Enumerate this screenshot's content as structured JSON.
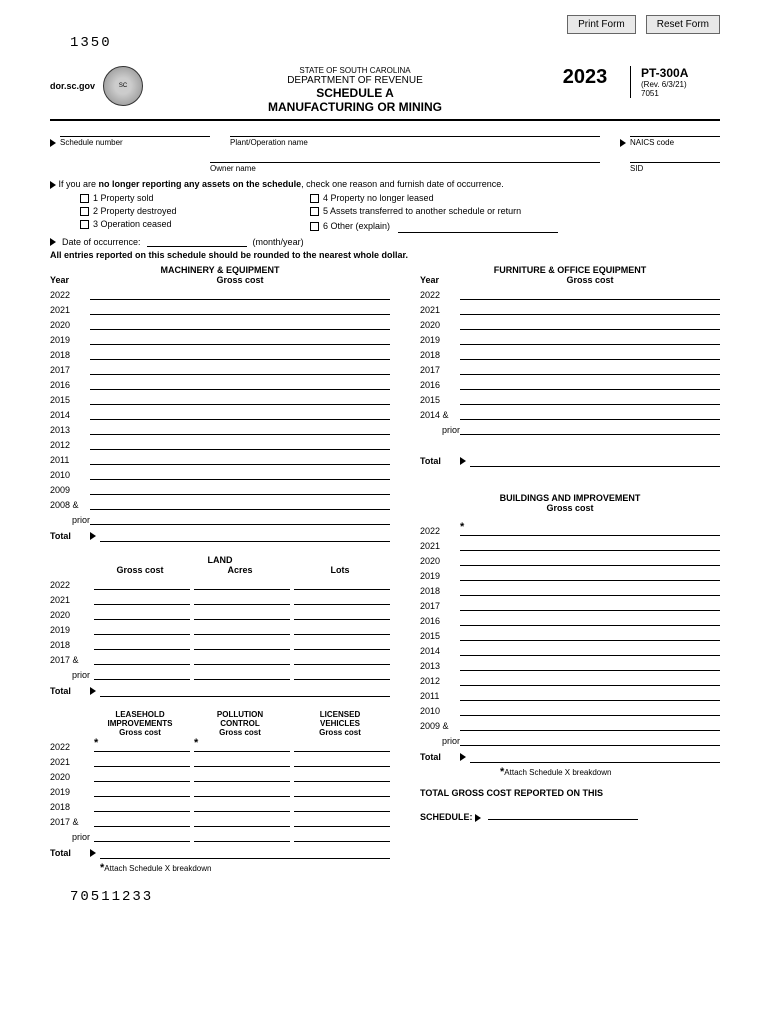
{
  "buttons": {
    "print": "Print Form",
    "reset": "Reset Form"
  },
  "formCode": "1350",
  "header": {
    "website": "dor.sc.gov",
    "state": "STATE OF SOUTH CAROLINA",
    "dept": "DEPARTMENT OF REVENUE",
    "title": "SCHEDULE A",
    "subtitle": "MANUFACTURING OR MINING",
    "year": "2023",
    "formId": "PT-300A",
    "rev": "(Rev. 6/3/21)",
    "num": "7051"
  },
  "fields": {
    "scheduleNumber": "Schedule number",
    "plantOperation": "Plant/Operation name",
    "naics": "NAICS code",
    "ownerName": "Owner name",
    "sid": "SID"
  },
  "noLonger": {
    "intro1": "If you are ",
    "intro2": "no longer reporting any assets on the schedule",
    "intro3": ", check one reason and furnish date of occurrence.",
    "opt1": "1  Property sold",
    "opt2": "2  Property destroyed",
    "opt3": "3  Operation ceased",
    "opt4": "4  Property no longer leased",
    "opt5": "5  Assets transferred to another schedule or return",
    "opt6": "6  Other (explain)",
    "dateLabel": "Date of occurrence:",
    "dateUnit": "(month/year)"
  },
  "roundNote": "All entries reported on this schedule should be rounded to the nearest whole dollar.",
  "sections": {
    "machinery": {
      "title": "MACHINERY & EQUIPMENT",
      "sub": "Gross cost"
    },
    "furniture": {
      "title": "FURNITURE & OFFICE EQUIPMENT",
      "sub": "Gross cost"
    },
    "buildings": {
      "title": "BUILDINGS AND IMPROVEMENT",
      "sub": "Gross cost"
    },
    "land": {
      "title": "LAND",
      "gross": "Gross cost",
      "acres": "Acres",
      "lots": "Lots"
    },
    "leasehold": {
      "title": "LEASEHOLD IMPROVEMENTS",
      "sub": "Gross cost"
    },
    "pollution": {
      "title": "POLLUTION CONTROL",
      "sub": "Gross cost"
    },
    "vehicles": {
      "title": "LICENSED VEHICLES",
      "sub": "Gross cost"
    }
  },
  "labels": {
    "year": "Year",
    "total": "Total",
    "prior": "prior",
    "attachX": "Attach Schedule X breakdown",
    "totalGross1": "TOTAL GROSS COST REPORTED ON THIS",
    "totalGross2": "SCHEDULE:"
  },
  "machineryYears": [
    "2022",
    "2021",
    "2020",
    "2019",
    "2018",
    "2017",
    "2016",
    "2015",
    "2014",
    "2013",
    "2012",
    "2011",
    "2010",
    "2009",
    "2008 &"
  ],
  "furnitureYears": [
    "2022",
    "2021",
    "2020",
    "2019",
    "2018",
    "2017",
    "2016",
    "2015",
    "2014 &"
  ],
  "buildingYears": [
    "2022",
    "2021",
    "2020",
    "2019",
    "2018",
    "2017",
    "2016",
    "2015",
    "2014",
    "2013",
    "2012",
    "2011",
    "2010",
    "2009 &"
  ],
  "landYears": [
    "2022",
    "2021",
    "2020",
    "2019",
    "2018",
    "2017 &"
  ],
  "tripleYears": [
    "2022",
    "2021",
    "2020",
    "2019",
    "2018",
    "2017 &"
  ],
  "barcode": "70511233"
}
